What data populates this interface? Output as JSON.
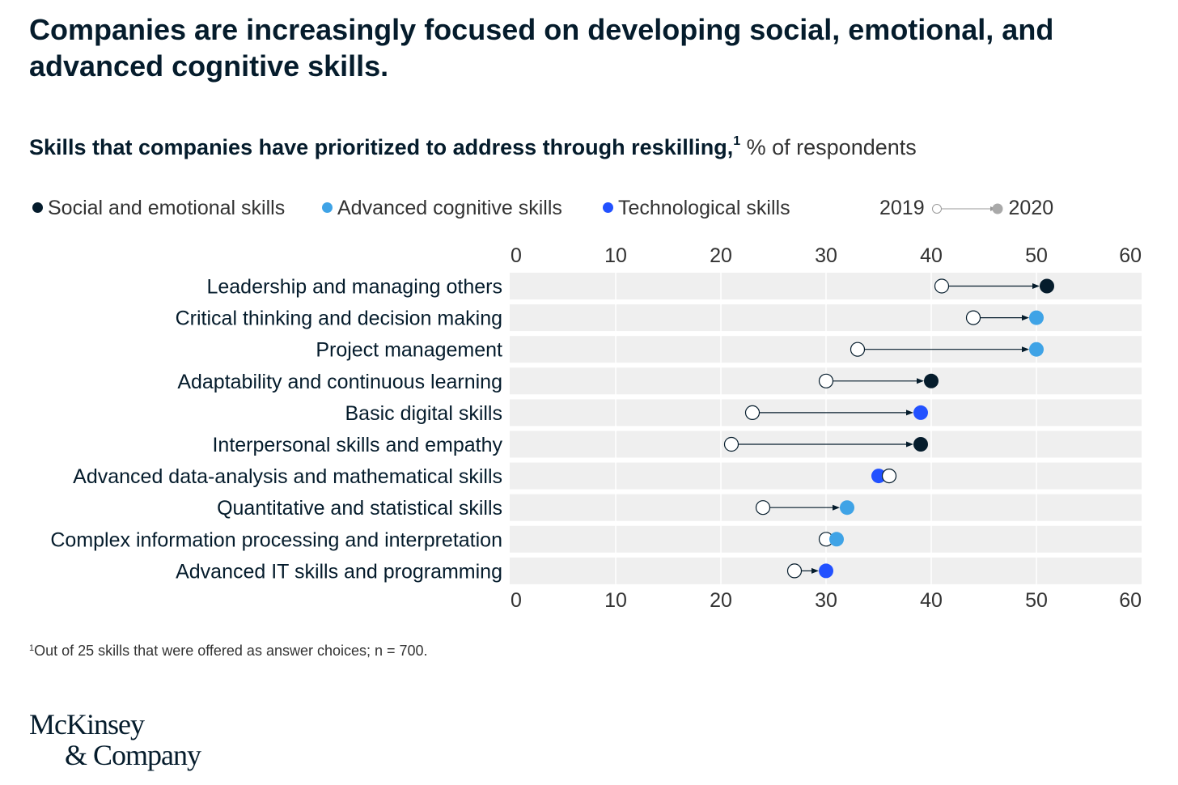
{
  "header": {
    "headline": "Companies are increasingly focused on developing social, emotional, and advanced cognitive skills.",
    "subtitle_bold": "Skills that companies have prioritized to address through reskilling,",
    "subtitle_note_marker": "1",
    "subtitle_unit": "% of respondents"
  },
  "legend": {
    "categories": [
      {
        "label": "Social and emotional skills",
        "color": "#051c2c"
      },
      {
        "label": "Advanced cognitive skills",
        "color": "#3fa3e6"
      },
      {
        "label": "Technological skills",
        "color": "#2251ff"
      }
    ],
    "year_start": "2019",
    "year_end": "2020"
  },
  "chart_data": {
    "type": "dumbbell",
    "unit": "% of respondents",
    "xlim": [
      0,
      60
    ],
    "ticks": [
      0,
      10,
      20,
      30,
      40,
      50,
      60
    ],
    "tick_labels": [
      "0",
      "10",
      "20",
      "30",
      "40",
      "50",
      "60"
    ],
    "start_label": "2019",
    "end_label": "2020",
    "categories": [
      "Leadership and managing others",
      "Critical thinking and decision making",
      "Project management",
      "Adaptability and continuous learning",
      "Basic digital skills",
      "Interpersonal skills and empathy",
      "Advanced data-analysis and mathematical skills",
      "Quantitative and statistical skills",
      "Complex information processing and interpretation",
      "Advanced IT skills and programming"
    ],
    "values_2019": [
      41,
      44,
      33,
      30,
      23,
      21,
      36,
      24,
      30,
      27
    ],
    "values_2020": [
      51,
      50,
      50,
      40,
      39,
      39,
      35,
      32,
      31,
      30
    ],
    "skill_group": [
      "social",
      "cognitive",
      "cognitive",
      "social",
      "tech",
      "social",
      "tech",
      "cognitive",
      "cognitive",
      "tech"
    ],
    "group_colors": {
      "social": "#051c2c",
      "cognitive": "#3fa3e6",
      "tech": "#2251ff"
    },
    "grid": true
  },
  "footnote": {
    "marker": "1",
    "text": "Out of 25 skills that were offered as answer choices; n = 700."
  },
  "logo": {
    "line1": "McKinsey",
    "line2": "& Company"
  }
}
